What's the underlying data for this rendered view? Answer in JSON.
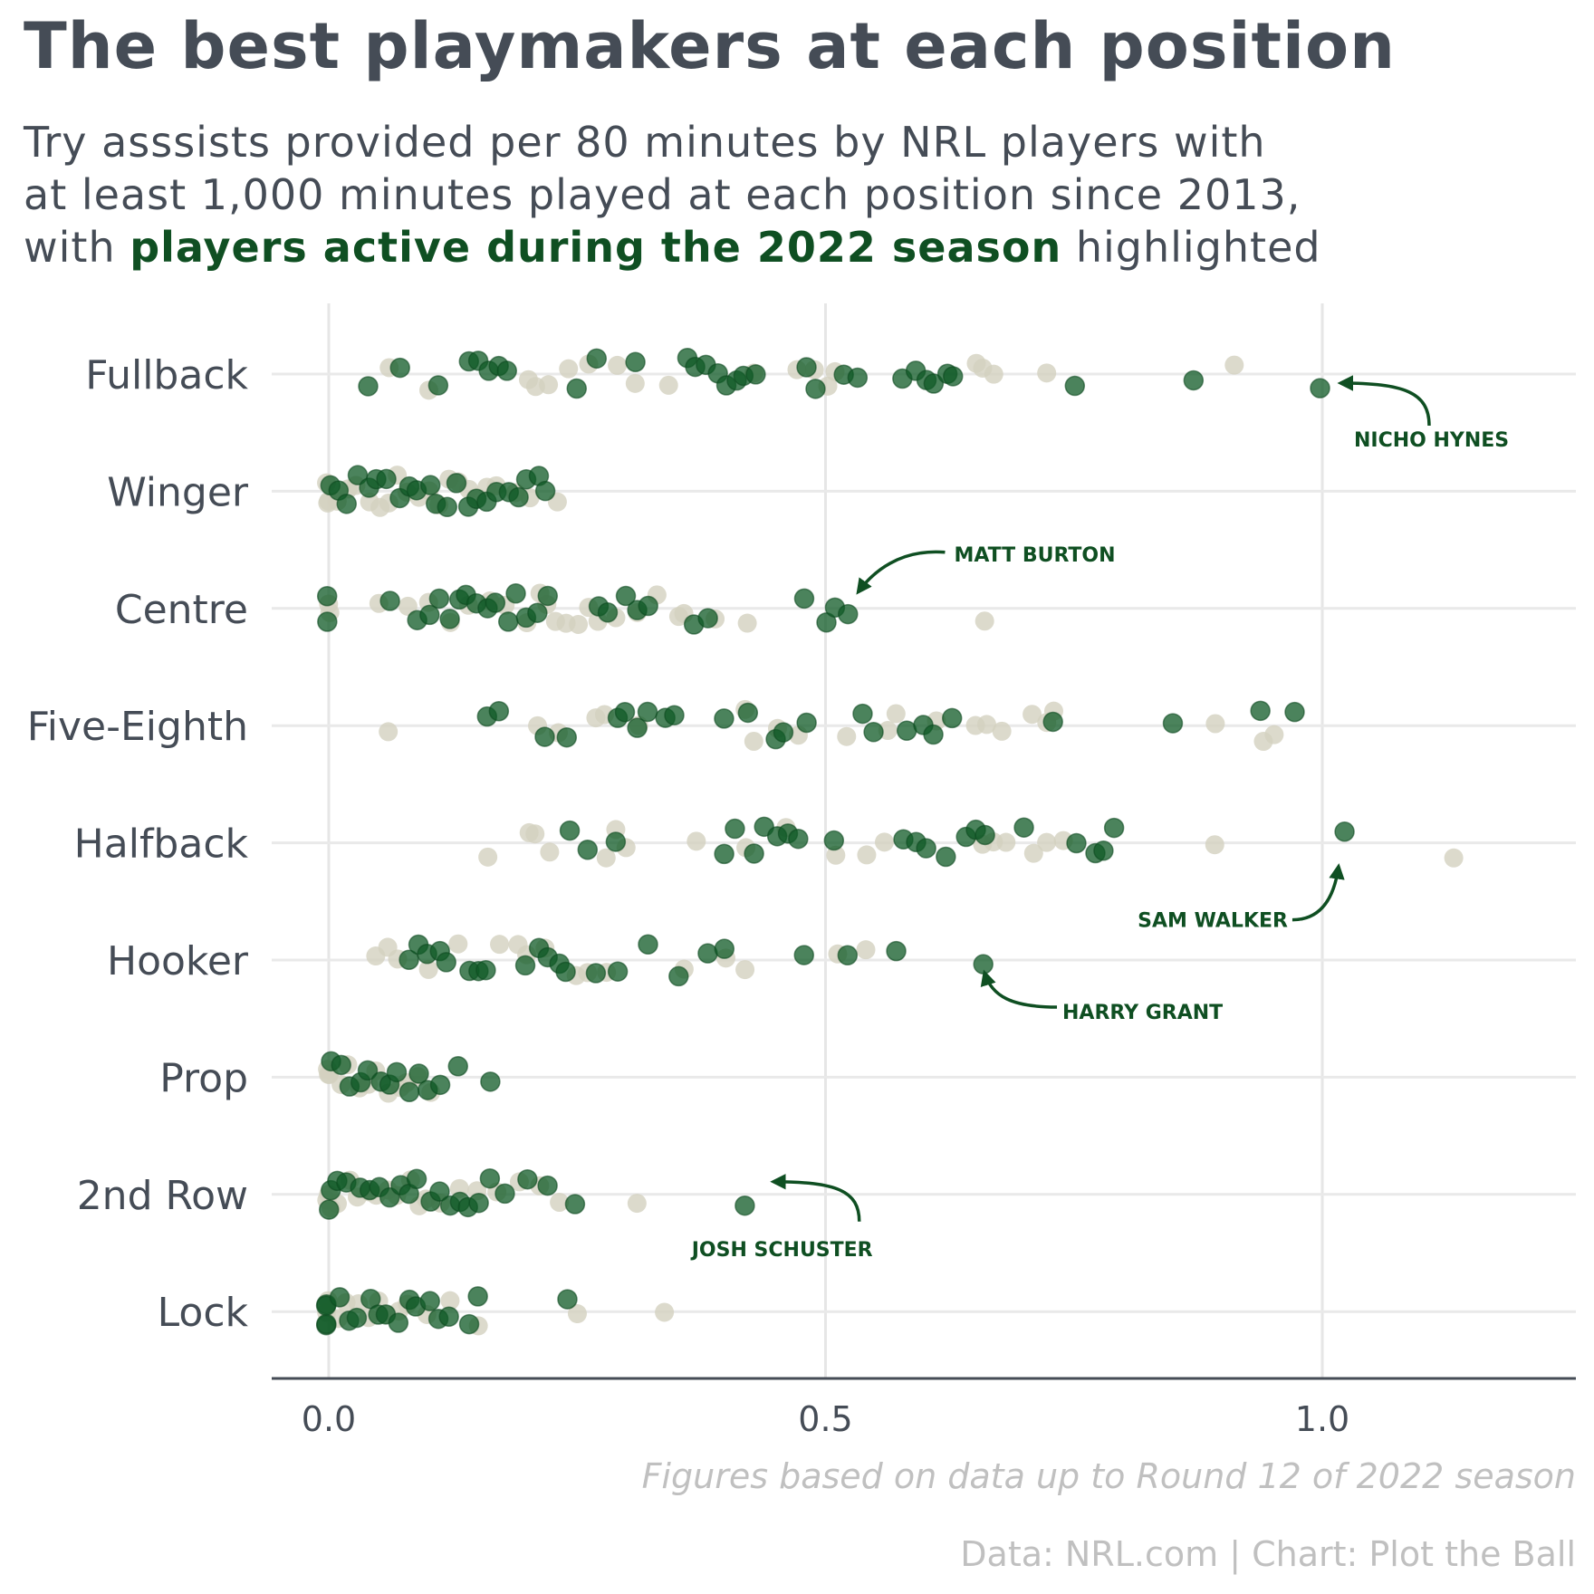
{
  "title": "The best playmakers at each position",
  "subtitle": {
    "line1": "Try asssists provided per 80 minutes by NRL players with",
    "line2": "at least 1,000 minutes played at each position since 2013,",
    "line3_pre": "with ",
    "line3_highlight": "players active during the 2022 season",
    "line3_post": " highlighted"
  },
  "footnote": "Figures based on data up to Round 12 of 2022 season",
  "source": "Data: NRL.com | Chart: Plot the Ball",
  "colors": {
    "active": "#0f5a26",
    "inactive": "#d3d1bf",
    "text": "#454c56",
    "highlight": "#0f4f22"
  },
  "chart_data": {
    "type": "scatter",
    "x_axis": {
      "range": [
        -0.06,
        1.26
      ],
      "ticks": [
        0.0,
        0.5,
        1.0
      ],
      "tick_labels": [
        "0.0",
        "0.5",
        "1.0"
      ]
    },
    "categories": [
      "Fullback",
      "Winger",
      "Centre",
      "Five-Eighth",
      "Halfback",
      "Hooker",
      "Prop",
      "2nd Row",
      "Lock"
    ],
    "grid": true,
    "series": [
      {
        "category": "Fullback",
        "active": [
          0.04,
          0.07,
          0.11,
          0.14,
          0.15,
          0.16,
          0.17,
          0.18,
          0.25,
          0.27,
          0.31,
          0.36,
          0.37,
          0.38,
          0.39,
          0.4,
          0.41,
          0.42,
          0.43,
          0.48,
          0.49,
          0.52,
          0.53,
          0.58,
          0.59,
          0.6,
          0.61,
          0.62,
          0.63,
          0.75,
          0.87,
          1.0
        ],
        "inactive": [
          0.06,
          0.1,
          0.2,
          0.21,
          0.22,
          0.24,
          0.26,
          0.29,
          0.31,
          0.34,
          0.43,
          0.47,
          0.49,
          0.5,
          0.51,
          0.65,
          0.66,
          0.67,
          0.72,
          0.91
        ]
      },
      {
        "category": "Winger",
        "active": [
          0.0,
          0.01,
          0.02,
          0.03,
          0.04,
          0.05,
          0.06,
          0.07,
          0.08,
          0.09,
          0.1,
          0.11,
          0.12,
          0.13,
          0.14,
          0.15,
          0.16,
          0.17,
          0.18,
          0.19,
          0.2,
          0.21,
          0.22
        ],
        "inactive": [
          0.0,
          0.0,
          0.0,
          0.01,
          0.02,
          0.03,
          0.04,
          0.05,
          0.06,
          0.07,
          0.08,
          0.09,
          0.1,
          0.11,
          0.12,
          0.13,
          0.14,
          0.15,
          0.16,
          0.17,
          0.19,
          0.2,
          0.23
        ]
      },
      {
        "category": "Centre",
        "active": [
          0.0,
          0.0,
          0.06,
          0.09,
          0.1,
          0.11,
          0.12,
          0.13,
          0.14,
          0.15,
          0.16,
          0.17,
          0.18,
          0.19,
          0.2,
          0.21,
          0.22,
          0.27,
          0.28,
          0.3,
          0.31,
          0.32,
          0.37,
          0.38,
          0.48,
          0.5,
          0.51,
          0.52
        ],
        "inactive": [
          0.0,
          0.0,
          0.05,
          0.08,
          0.1,
          0.12,
          0.14,
          0.16,
          0.18,
          0.2,
          0.21,
          0.22,
          0.23,
          0.24,
          0.25,
          0.26,
          0.27,
          0.29,
          0.31,
          0.33,
          0.35,
          0.36,
          0.39,
          0.42,
          0.66
        ]
      },
      {
        "category": "Five-Eighth",
        "active": [
          0.16,
          0.17,
          0.22,
          0.24,
          0.29,
          0.3,
          0.31,
          0.32,
          0.34,
          0.35,
          0.4,
          0.42,
          0.45,
          0.46,
          0.48,
          0.54,
          0.55,
          0.58,
          0.6,
          0.61,
          0.63,
          0.73,
          0.85,
          0.94,
          0.97
        ],
        "inactive": [
          0.06,
          0.21,
          0.23,
          0.27,
          0.28,
          0.31,
          0.42,
          0.43,
          0.45,
          0.47,
          0.52,
          0.56,
          0.57,
          0.61,
          0.65,
          0.66,
          0.68,
          0.71,
          0.72,
          0.73,
          0.89,
          0.94,
          0.95
        ]
      },
      {
        "category": "Halfback",
        "active": [
          0.24,
          0.26,
          0.29,
          0.4,
          0.41,
          0.43,
          0.44,
          0.45,
          0.46,
          0.47,
          0.51,
          0.58,
          0.59,
          0.6,
          0.62,
          0.64,
          0.65,
          0.66,
          0.7,
          0.75,
          0.77,
          0.78,
          0.79,
          1.02
        ],
        "inactive": [
          0.16,
          0.2,
          0.21,
          0.22,
          0.28,
          0.29,
          0.3,
          0.37,
          0.42,
          0.46,
          0.51,
          0.54,
          0.56,
          0.66,
          0.67,
          0.68,
          0.71,
          0.72,
          0.74,
          0.89,
          1.13
        ]
      },
      {
        "category": "Hooker",
        "active": [
          0.08,
          0.09,
          0.1,
          0.11,
          0.12,
          0.14,
          0.15,
          0.16,
          0.2,
          0.21,
          0.22,
          0.23,
          0.24,
          0.27,
          0.29,
          0.32,
          0.35,
          0.38,
          0.4,
          0.48,
          0.52,
          0.57,
          0.66
        ],
        "inactive": [
          0.05,
          0.06,
          0.07,
          0.1,
          0.13,
          0.17,
          0.19,
          0.2,
          0.22,
          0.25,
          0.26,
          0.28,
          0.36,
          0.4,
          0.42,
          0.51,
          0.54
        ]
      },
      {
        "category": "Prop",
        "active": [
          0.0,
          0.01,
          0.02,
          0.03,
          0.04,
          0.05,
          0.06,
          0.07,
          0.08,
          0.09,
          0.1,
          0.11,
          0.13,
          0.16
        ],
        "inactive": [
          0.0,
          0.0,
          0.0,
          0.01,
          0.02,
          0.03,
          0.04,
          0.05,
          0.06,
          0.07,
          0.08,
          0.09,
          0.1
        ]
      },
      {
        "category": "2nd Row",
        "active": [
          0.0,
          0.0,
          0.01,
          0.02,
          0.03,
          0.04,
          0.05,
          0.06,
          0.07,
          0.08,
          0.09,
          0.1,
          0.11,
          0.12,
          0.13,
          0.14,
          0.15,
          0.16,
          0.18,
          0.2,
          0.22,
          0.25,
          0.42
        ],
        "inactive": [
          0.0,
          0.0,
          0.0,
          0.01,
          0.02,
          0.03,
          0.04,
          0.05,
          0.06,
          0.07,
          0.08,
          0.09,
          0.1,
          0.11,
          0.13,
          0.15,
          0.17,
          0.19,
          0.21,
          0.23,
          0.31
        ]
      },
      {
        "category": "Lock",
        "active": [
          0.0,
          0.0,
          0.0,
          0.0,
          0.01,
          0.02,
          0.03,
          0.04,
          0.05,
          0.06,
          0.07,
          0.08,
          0.09,
          0.1,
          0.11,
          0.12,
          0.14,
          0.15,
          0.24
        ],
        "inactive": [
          0.0,
          0.0,
          0.01,
          0.02,
          0.03,
          0.04,
          0.05,
          0.06,
          0.07,
          0.08,
          0.1,
          0.12,
          0.15,
          0.25,
          0.34
        ]
      }
    ],
    "annotations": [
      {
        "label": "NICHO HYNES",
        "category": "Fullback",
        "x": 1.0
      },
      {
        "label": "MATT BURTON",
        "category": "Centre",
        "x": 0.52
      },
      {
        "label": "SAM WALKER",
        "category": "Halfback",
        "x": 1.02
      },
      {
        "label": "HARRY GRANT",
        "category": "Hooker",
        "x": 0.66
      },
      {
        "label": "JOSH SCHUSTER",
        "category": "2nd Row",
        "x": 0.42
      }
    ]
  }
}
